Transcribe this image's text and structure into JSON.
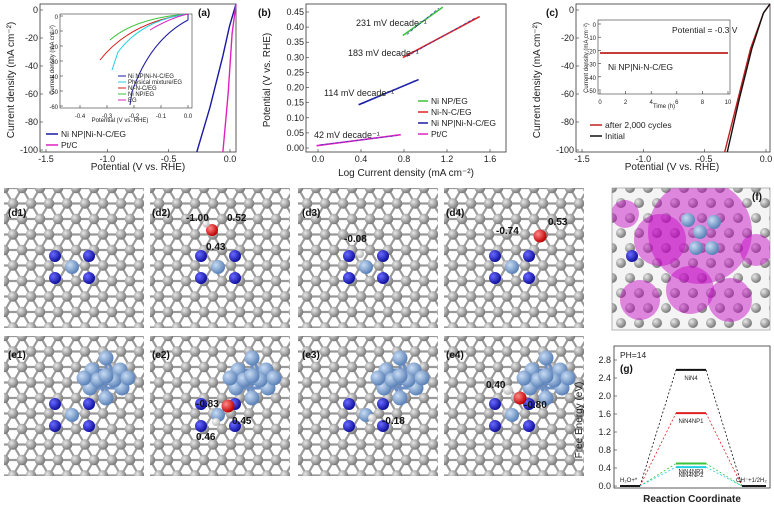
{
  "panel_a": {
    "label": "(a)",
    "ylabel": "Current density (mA cm⁻²)",
    "xlabel": "Potential (V vs. RHE)",
    "xticks": [
      "-1.5",
      "-1.0",
      "-0.5",
      "0.0"
    ],
    "yticks": [
      "0",
      "-20",
      "-40",
      "-60",
      "-80",
      "-100"
    ],
    "legend": [
      "Ni NP|Ni-N-C/EG",
      "Pt/C"
    ],
    "inset": {
      "ylabel": "Current density (mA cm⁻²)",
      "xlabel": "Potential (V vs. RHE)",
      "xticks": [
        "-0.4",
        "-0.3",
        "-0.2",
        "-0.1",
        "0.0"
      ],
      "yticks": [
        "0",
        "-10",
        "-20",
        "-30",
        "-40",
        "-50",
        "-60"
      ],
      "legend": [
        "Ni NP|Ni-N-C/EG",
        "Physical mixture/EG",
        "Ni-N-C/EG",
        "Ni NP/EG",
        "EG"
      ]
    }
  },
  "panel_b": {
    "label": "(b)",
    "ylabel": "Potential (V vs. RHE)",
    "xlabel": "Log Current density (mA cm⁻²)",
    "xticks": [
      "0.0",
      "0.4",
      "0.8",
      "1.2",
      "1.6"
    ],
    "yticks": [
      "0.00",
      "0.05",
      "0.10",
      "0.15",
      "0.20",
      "0.25",
      "0.30",
      "0.35",
      "0.40",
      "0.45"
    ],
    "annotations": [
      "231 mV decade⁻¹",
      "183 mV decade⁻¹",
      "114 mV decade⁻¹",
      "42 mV decade⁻¹"
    ],
    "legend": [
      "Ni NP/EG",
      "Ni-N-C/EG",
      "Ni NP|Ni-N-C/EG",
      "Pt/C"
    ]
  },
  "panel_c": {
    "label": "(c)",
    "ylabel": "Current density (mA cm⁻²)",
    "xlabel": "Potential (V vs. RHE)",
    "xticks": [
      "-1.5",
      "-1.0",
      "-0.5",
      "0.0"
    ],
    "yticks": [
      "0",
      "-20",
      "-40",
      "-60",
      "-80",
      "-100"
    ],
    "legend": [
      "after 2,000 cycles",
      "Initial"
    ],
    "inset": {
      "ylabel": "Current density (mA cm⁻²)",
      "xlabel": "Time (h)",
      "xticks": [
        "0",
        "2",
        "4",
        "6",
        "8",
        "10"
      ],
      "yticks": [
        "0",
        "-10",
        "-20",
        "-30",
        "-40",
        "-50"
      ],
      "note": "Potential = -0.3 V",
      "sample": "Ni NP|Ni-N-C/EG"
    }
  },
  "structures": {
    "d1": {
      "label": "(d1)",
      "values": []
    },
    "d2": {
      "label": "(d2)",
      "values": [
        "-1.00",
        "0.52",
        "0.43"
      ]
    },
    "d3": {
      "label": "(d3)",
      "values": [
        "-0.08"
      ]
    },
    "d4": {
      "label": "(d4)",
      "values": [
        "-0.74",
        "0.53"
      ]
    },
    "e1": {
      "label": "(e1)",
      "values": []
    },
    "e2": {
      "label": "(e2)",
      "values": [
        "-0.83",
        "0.45",
        "0.46"
      ]
    },
    "e3": {
      "label": "(e3)",
      "values": [
        "-0.18"
      ]
    },
    "e4": {
      "label": "(e4)",
      "values": [
        "0.40",
        "-0.80"
      ]
    },
    "f": {
      "label": "(f)"
    }
  },
  "panel_g": {
    "label": "(g)",
    "ph": "PH=14",
    "ylabel": "Free Energy (eV)",
    "xlabel": "Reaction Coordinate",
    "yticks": [
      "0.0",
      "0.4",
      "0.8",
      "1.2",
      "1.6",
      "2.0",
      "2.4",
      "2.8"
    ],
    "levels": [
      "NiN4",
      "NiN4NP1",
      "NiN4NP3",
      "NiN4NP2"
    ],
    "start": "H₂O+*",
    "end": "OH⁻+1/2H₂"
  },
  "chart_data": [
    {
      "type": "line",
      "title": "",
      "xlabel": "Potential (V vs. RHE)",
      "ylabel": "Current density (mA cm-2)",
      "xlim": [
        -1.5,
        0.0
      ],
      "ylim": [
        -100,
        0
      ],
      "series": [
        {
          "name": "Ni NP|Ni-N-C/EG",
          "color": "#1a1aa0",
          "x": [
            -0.3,
            -0.2,
            -0.1,
            -0.05,
            0.0
          ],
          "y": [
            -100,
            -70,
            -35,
            -15,
            0
          ]
        },
        {
          "name": "Pt/C",
          "color": "#e020c0",
          "x": [
            -0.1,
            -0.06,
            -0.03,
            0.0
          ],
          "y": [
            -100,
            -60,
            -20,
            0
          ]
        }
      ]
    },
    {
      "type": "line",
      "title": "",
      "xlabel": "Log Current density (mA cm-2)",
      "ylabel": "Potential (V vs. RHE)",
      "xlim": [
        -0.1,
        1.8
      ],
      "ylim": [
        -0.02,
        0.45
      ],
      "series": [
        {
          "name": "Ni NP/EG",
          "color": "#3ac43a",
          "x": [
            0.82,
            1.2
          ],
          "y": [
            0.35,
            0.44
          ]
        },
        {
          "name": "Ni-N-C/EG",
          "color": "#e02020",
          "x": [
            0.82,
            1.55
          ],
          "y": [
            0.28,
            0.41
          ]
        },
        {
          "name": "Ni NP|Ni-N-C/EG",
          "color": "#1a1aa0",
          "x": [
            0.4,
            0.97
          ],
          "y": [
            0.13,
            0.21
          ]
        },
        {
          "name": "Pt/C",
          "color": "#e020c0",
          "x": [
            0.0,
            0.8
          ],
          "y": [
            0.0,
            0.035
          ]
        }
      ]
    },
    {
      "type": "line",
      "title": "",
      "xlabel": "Potential (V vs. RHE)",
      "ylabel": "Current density (mA cm-2)",
      "xlim": [
        -1.5,
        0.0
      ],
      "ylim": [
        -100,
        0
      ],
      "series": [
        {
          "name": "after 2,000 cycles",
          "color": "#c02020",
          "x": [
            -0.35,
            -0.25,
            -0.15,
            -0.05,
            0.0
          ],
          "y": [
            -100,
            -65,
            -30,
            -6,
            0
          ]
        },
        {
          "name": "Initial",
          "color": "#111111",
          "x": [
            -0.33,
            -0.24,
            -0.14,
            -0.05,
            0.0
          ],
          "y": [
            -100,
            -65,
            -30,
            -6,
            0
          ]
        }
      ]
    },
    {
      "type": "line",
      "title": "",
      "xlabel": "Reaction Coordinate",
      "ylabel": "Free Energy (eV)",
      "ylim": [
        0.0,
        2.8
      ],
      "series": [
        {
          "name": "NiN4",
          "color": "#111111",
          "y": [
            0.0,
            2.58,
            0.0
          ]
        },
        {
          "name": "NiN4NP1",
          "color": "#e02020",
          "y": [
            0.0,
            1.62,
            0.0
          ]
        },
        {
          "name": "NiN4NP3",
          "color": "#3ac43a",
          "y": [
            0.0,
            0.5,
            0.0
          ]
        },
        {
          "name": "NiN4NP2",
          "color": "#20d0e0",
          "y": [
            0.0,
            0.42,
            0.0
          ]
        }
      ]
    }
  ]
}
